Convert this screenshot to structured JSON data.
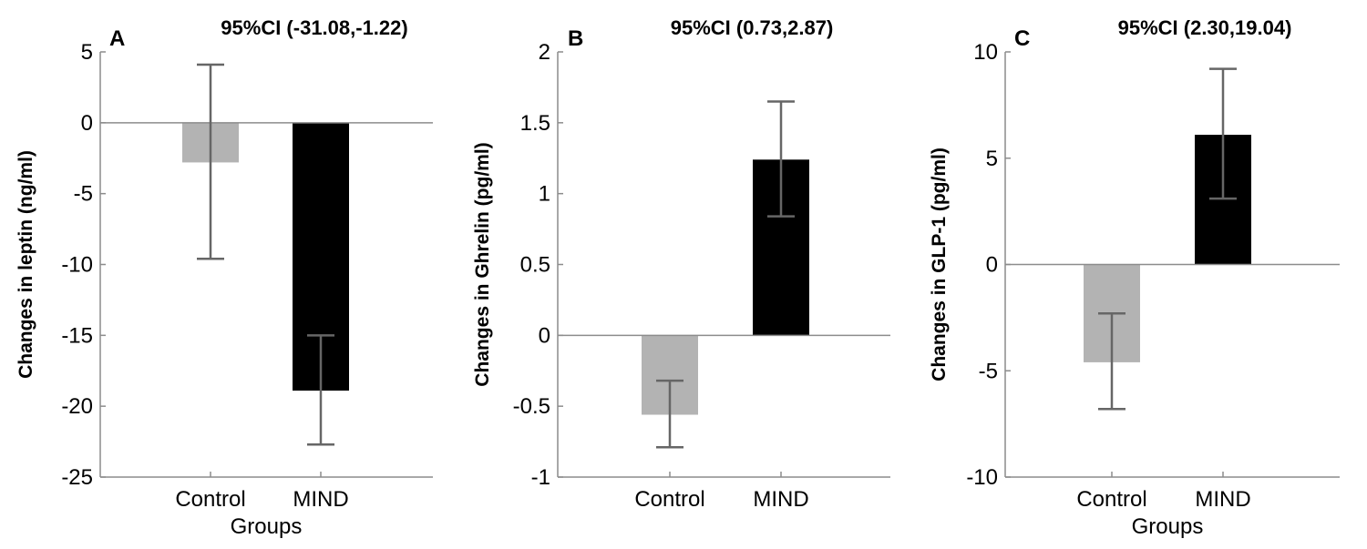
{
  "chart_data": [
    {
      "type": "bar",
      "panel": "A",
      "title": "95%CI (-31.08,-1.22)",
      "xlabel": "Groups",
      "ylabel": "Changes in leptin (ng/ml)",
      "categories": [
        "Control",
        "MIND"
      ],
      "values": [
        -2.8,
        -18.9
      ],
      "error_low": [
        -9.6,
        -22.7
      ],
      "error_high": [
        4.1,
        -15.0
      ],
      "bar_colors": [
        "#b3b3b3",
        "#000000"
      ],
      "ylim": [
        -25,
        5
      ],
      "yticks": [
        5,
        0,
        -5,
        -10,
        -15,
        -20,
        -25
      ],
      "ytick_labels": [
        "5",
        "0",
        "-5",
        "-10",
        "-15",
        "-20",
        "-25"
      ]
    },
    {
      "type": "bar",
      "panel": "B",
      "title": "95%CI (0.73,2.87)",
      "xlabel": "",
      "ylabel": "Changes in Ghrelin (pg/ml)",
      "categories": [
        "Control",
        "MIND"
      ],
      "values": [
        -0.56,
        1.24
      ],
      "error_low": [
        -0.79,
        0.84
      ],
      "error_high": [
        -0.32,
        1.65
      ],
      "bar_colors": [
        "#b3b3b3",
        "#000000"
      ],
      "ylim": [
        -1,
        2
      ],
      "yticks": [
        2,
        1.5,
        1,
        0.5,
        0,
        -0.5,
        -1
      ],
      "ytick_labels": [
        "2",
        "1.5",
        "1",
        "0.5",
        "0",
        "-0.5",
        "-1"
      ]
    },
    {
      "type": "bar",
      "panel": "C",
      "title": "95%CI (2.30,19.04)",
      "xlabel": "Groups",
      "ylabel": "Changes in GLP-1 (pg/ml)",
      "categories": [
        "Control",
        "MIND"
      ],
      "values": [
        -4.6,
        6.1
      ],
      "error_low": [
        -6.8,
        3.1
      ],
      "error_high": [
        -2.3,
        9.2
      ],
      "bar_colors": [
        "#b3b3b3",
        "#000000"
      ],
      "ylim": [
        -10,
        10
      ],
      "yticks": [
        10,
        5,
        0,
        -5,
        -10
      ],
      "ytick_labels": [
        "10",
        "5",
        "0",
        "-5",
        "-10"
      ]
    }
  ]
}
